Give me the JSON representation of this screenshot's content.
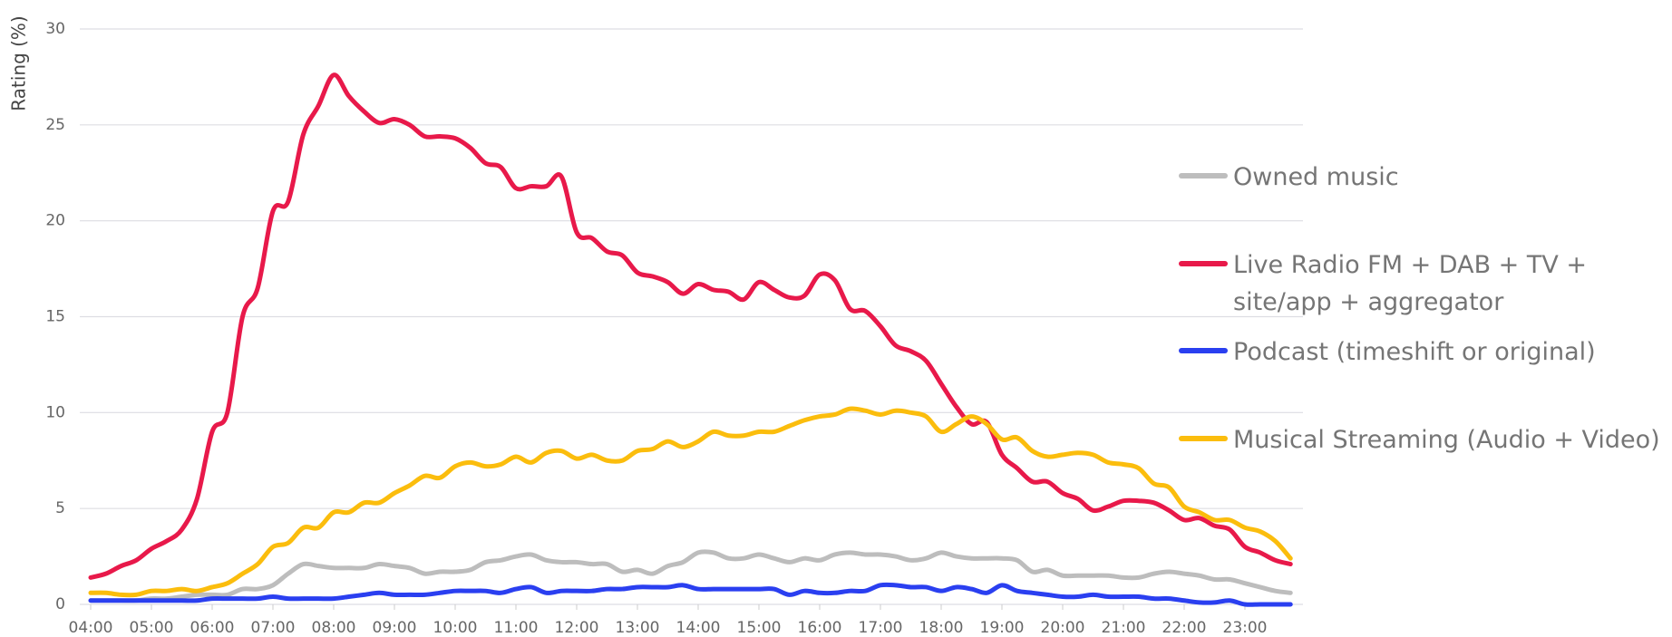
{
  "chart_data": {
    "type": "line",
    "y_label": "Rating (%)",
    "categories": [
      "04:00",
      null,
      null,
      null,
      "05:00",
      null,
      null,
      null,
      "06:00",
      null,
      null,
      null,
      "07:00",
      null,
      null,
      null,
      "08:00",
      null,
      null,
      null,
      "09:00",
      null,
      null,
      null,
      "10:00",
      null,
      null,
      null,
      "11:00",
      null,
      null,
      null,
      "12:00",
      null,
      null,
      null,
      "13:00",
      null,
      null,
      null,
      "14:00",
      null,
      null,
      null,
      "15:00",
      null,
      null,
      null,
      "16:00",
      null,
      null,
      null,
      "17:00",
      null,
      null,
      null,
      "18:00",
      null,
      null,
      null,
      "19:00",
      null,
      null,
      null,
      "20:00",
      null,
      null,
      null,
      "21:00",
      null,
      null,
      null,
      "22:00",
      null,
      null,
      null,
      "23:00",
      null,
      null,
      null
    ],
    "series": [
      {
        "name": "Owned music",
        "color": "#bdbdbd",
        "values": [
          0.2,
          0.2,
          0.2,
          0.2,
          0.3,
          0.3,
          0.4,
          0.5,
          0.5,
          0.5,
          0.8,
          0.8,
          1.0,
          1.6,
          2.1,
          2.0,
          1.9,
          1.9,
          1.9,
          2.1,
          2.0,
          1.9,
          1.6,
          1.7,
          1.7,
          1.8,
          2.2,
          2.3,
          2.5,
          2.6,
          2.3,
          2.2,
          2.2,
          2.1,
          2.1,
          1.7,
          1.8,
          1.6,
          2.0,
          2.2,
          2.7,
          2.7,
          2.4,
          2.4,
          2.6,
          2.4,
          2.2,
          2.4,
          2.3,
          2.6,
          2.7,
          2.6,
          2.6,
          2.5,
          2.3,
          2.4,
          2.7,
          2.5,
          2.4,
          2.4,
          2.4,
          2.3,
          1.7,
          1.8,
          1.5,
          1.5,
          1.5,
          1.5,
          1.4,
          1.4,
          1.6,
          1.7,
          1.6,
          1.5,
          1.3,
          1.3,
          1.1,
          0.9,
          0.7,
          0.6
        ]
      },
      {
        "name": "Live Radio FM + DAB + TV + site/app + aggregator",
        "color": "#e8194a",
        "values": [
          1.4,
          1.6,
          2.0,
          2.3,
          2.9,
          3.3,
          3.9,
          5.5,
          9.0,
          10.0,
          15.0,
          16.5,
          20.5,
          21.0,
          24.5,
          26.0,
          27.6,
          26.5,
          25.7,
          25.1,
          25.3,
          25.0,
          24.4,
          24.4,
          24.3,
          23.8,
          23.0,
          22.8,
          21.7,
          21.8,
          21.8,
          22.3,
          19.4,
          19.1,
          18.4,
          18.2,
          17.3,
          17.1,
          16.8,
          16.2,
          16.7,
          16.4,
          16.3,
          15.9,
          16.8,
          16.4,
          16.0,
          16.1,
          17.2,
          16.9,
          15.4,
          15.3,
          14.5,
          13.5,
          13.2,
          12.7,
          11.5,
          10.3,
          9.4,
          9.5,
          7.8,
          7.1,
          6.4,
          6.4,
          5.8,
          5.5,
          4.9,
          5.1,
          5.4,
          5.4,
          5.3,
          4.9,
          4.4,
          4.5,
          4.1,
          3.9,
          3.0,
          2.7,
          2.3,
          2.1
        ]
      },
      {
        "name": "Podcast (timeshift or original)",
        "color": "#2a3ff0",
        "values": [
          0.2,
          0.2,
          0.2,
          0.2,
          0.2,
          0.2,
          0.2,
          0.2,
          0.3,
          0.3,
          0.3,
          0.3,
          0.4,
          0.3,
          0.3,
          0.3,
          0.3,
          0.4,
          0.5,
          0.6,
          0.5,
          0.5,
          0.5,
          0.6,
          0.7,
          0.7,
          0.7,
          0.6,
          0.8,
          0.9,
          0.6,
          0.7,
          0.7,
          0.7,
          0.8,
          0.8,
          0.9,
          0.9,
          0.9,
          1.0,
          0.8,
          0.8,
          0.8,
          0.8,
          0.8,
          0.8,
          0.5,
          0.7,
          0.6,
          0.6,
          0.7,
          0.7,
          1.0,
          1.0,
          0.9,
          0.9,
          0.7,
          0.9,
          0.8,
          0.6,
          1.0,
          0.7,
          0.6,
          0.5,
          0.4,
          0.4,
          0.5,
          0.4,
          0.4,
          0.4,
          0.3,
          0.3,
          0.2,
          0.1,
          0.1,
          0.2,
          0.0,
          0.0,
          0.0,
          0.0
        ]
      },
      {
        "name": "Musical Streaming (Audio + Video)",
        "color": "#fbbd0d",
        "values": [
          0.6,
          0.6,
          0.5,
          0.5,
          0.7,
          0.7,
          0.8,
          0.7,
          0.9,
          1.1,
          1.6,
          2.1,
          3.0,
          3.2,
          4.0,
          4.0,
          4.8,
          4.8,
          5.3,
          5.3,
          5.8,
          6.2,
          6.7,
          6.6,
          7.2,
          7.4,
          7.2,
          7.3,
          7.7,
          7.4,
          7.9,
          8.0,
          7.6,
          7.8,
          7.5,
          7.5,
          8.0,
          8.1,
          8.5,
          8.2,
          8.5,
          9.0,
          8.8,
          8.8,
          9.0,
          9.0,
          9.3,
          9.6,
          9.8,
          9.9,
          10.2,
          10.1,
          9.9,
          10.1,
          10.0,
          9.8,
          9.0,
          9.4,
          9.8,
          9.4,
          8.6,
          8.7,
          8.0,
          7.7,
          7.8,
          7.9,
          7.8,
          7.4,
          7.3,
          7.1,
          6.3,
          6.1,
          5.1,
          4.8,
          4.4,
          4.4,
          4.0,
          3.8,
          3.3,
          2.4
        ]
      }
    ],
    "ylim": [
      0,
      30
    ],
    "yticks": [
      0,
      5,
      10,
      15,
      20,
      25,
      30
    ],
    "grid": true,
    "legend": "right"
  }
}
